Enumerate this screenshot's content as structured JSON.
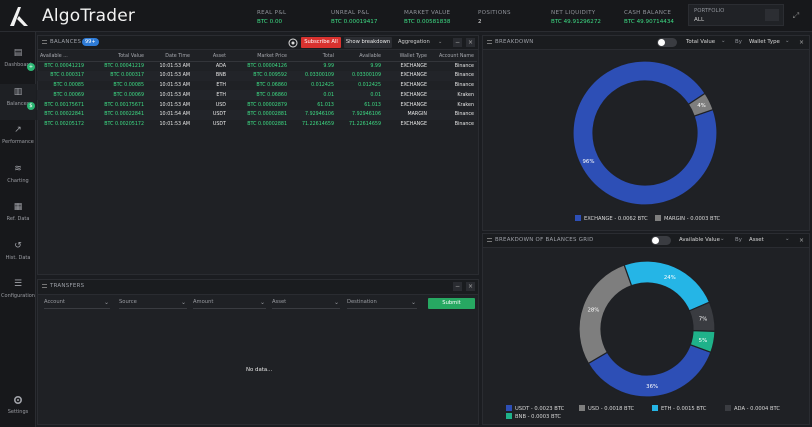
{
  "app": {
    "title": "AlgoTrader"
  },
  "header": {
    "stats": [
      {
        "label": "REAL P&L",
        "value": "BTC 0.00",
        "green": true
      },
      {
        "label": "UNREAL P&L",
        "value": "BTC 0.00019417",
        "green": true
      },
      {
        "label": "MARKET VALUE",
        "value": "BTC 0.00581838",
        "green": true
      },
      {
        "label": "POSITIONS",
        "value": "2",
        "green": false
      },
      {
        "label": "NET LIQUIDITY",
        "value": "BTC 49.91296272",
        "green": true
      },
      {
        "label": "CASH BALANCE",
        "value": "BTC 49.90714434",
        "green": true
      }
    ],
    "portfolio": {
      "label": "PORTFOLIO",
      "value": "ALL"
    }
  },
  "sidebar": {
    "items": [
      {
        "label": "Dashboard",
        "icon": "dashboard-icon",
        "badge": "+"
      },
      {
        "label": "Balances",
        "icon": "balances-icon",
        "badge": "$"
      },
      {
        "label": "Performance",
        "icon": "performance-icon",
        "badge": ""
      },
      {
        "label": "Charting",
        "icon": "charting-icon",
        "badge": ""
      },
      {
        "label": "Ref. Data",
        "icon": "ref-data-icon",
        "badge": ""
      },
      {
        "label": "Hist. Data",
        "icon": "hist-data-icon",
        "badge": ""
      },
      {
        "label": "Configuration",
        "icon": "configuration-icon",
        "badge": ""
      }
    ],
    "settings_label": "Settings"
  },
  "balances": {
    "title": "BALANCES",
    "badge": "99+",
    "subscribe_label": "Subscribe All",
    "breakdown_label": "Show breakdown",
    "aggregation_label": "Aggregation",
    "columns": [
      "Available ...",
      "Total Value",
      "Date Time",
      "Asset",
      "Market Price",
      "Total",
      "Available",
      "Wallet Type",
      "Account Name"
    ],
    "rows": [
      [
        "BTC 0.00041219",
        "BTC 0.00041219",
        "10:01:53 AM",
        "ADA",
        "BTC 0.00004126",
        "9.99",
        "9.99",
        "EXCHANGE",
        "Binance"
      ],
      [
        "BTC 0.000317",
        "BTC 0.000317",
        "10:01:53 AM",
        "BNB",
        "BTC 0.009592",
        "0.03300109",
        "0.03300109",
        "EXCHANGE",
        "Binance"
      ],
      [
        "BTC 0.00085",
        "BTC 0.00085",
        "10:01:53 AM",
        "ETH",
        "BTC 0.06860",
        "0.012425",
        "0.012425",
        "EXCHANGE",
        "Binance"
      ],
      [
        "BTC 0.00069",
        "BTC 0.00069",
        "10:01:53 AM",
        "ETH",
        "BTC 0.06860",
        "0.01",
        "0.01",
        "EXCHANGE",
        "Kraken"
      ],
      [
        "BTC 0.00175671",
        "BTC 0.00175671",
        "10:01:53 AM",
        "USD",
        "BTC 0.00002879",
        "61.013",
        "61.013",
        "EXCHANGE",
        "Kraken"
      ],
      [
        "BTC 0.00022841",
        "BTC 0.00022841",
        "10:01:54 AM",
        "USDT",
        "BTC 0.00002881",
        "7.92946106",
        "7.92946106",
        "MARGIN",
        "Binance"
      ],
      [
        "BTC 0.00205172",
        "BTC 0.00205172",
        "10:01:53 AM",
        "USDT",
        "BTC 0.00002881",
        "71.22614659",
        "71.22614659",
        "EXCHANGE",
        "Binance"
      ]
    ]
  },
  "transfers": {
    "title": "TRANSFERS",
    "fields": [
      "Account",
      "Source",
      "Amount",
      "Asset",
      "Destination"
    ],
    "submit_label": "Submit",
    "empty_text": "No data..."
  },
  "breakdown": {
    "title": "BREAKDOWN",
    "value_label": "Total Value",
    "by_label": "By",
    "group_label": "Wallet Type",
    "chart_data": {
      "type": "pie",
      "slices": [
        {
          "label": "EXCHANGE - 0.0062 BTC",
          "value": 96,
          "color": "#2d4fb6",
          "pct": "96%"
        },
        {
          "label": "MARGIN - 0.0003 BTC",
          "value": 4,
          "color": "#7e7e7e",
          "pct": "4%"
        }
      ]
    }
  },
  "grid_breakdown": {
    "title": "BREAKDOWN OF BALANCES GRID",
    "value_label": "Available Value",
    "by_label": "By",
    "group_label": "Asset",
    "chart_data": {
      "type": "pie",
      "slices": [
        {
          "label": "USDT - 0.0023 BTC",
          "value": 36,
          "color": "#2d4fb6",
          "pct": "36%"
        },
        {
          "label": "USD - 0.0018 BTC",
          "value": 28,
          "color": "#7e7e7e",
          "pct": "28%"
        },
        {
          "label": "ETH - 0.0015 BTC",
          "value": 24,
          "color": "#25b5e6",
          "pct": "24%"
        },
        {
          "label": "ADA - 0.0004 BTC",
          "value": 7,
          "color": "#3a3c41",
          "pct": "7%"
        },
        {
          "label": "BNB - 0.0003 BTC",
          "value": 5,
          "color": "#1fb28a",
          "pct": "5%"
        }
      ]
    }
  }
}
